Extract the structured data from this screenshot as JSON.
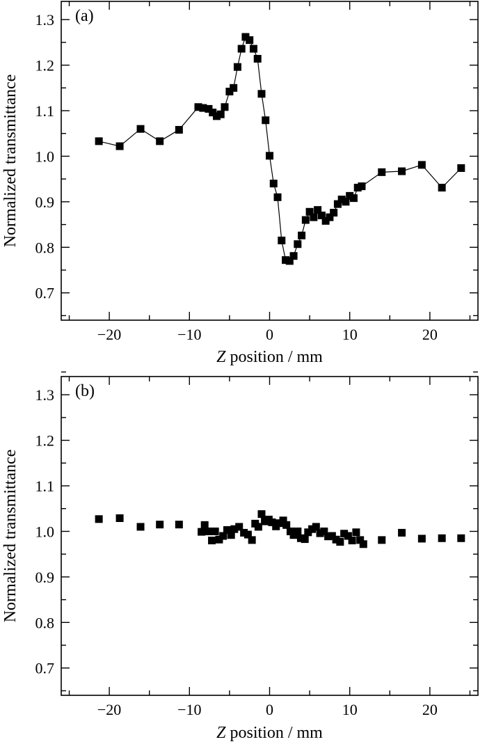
{
  "chart_data": [
    {
      "type": "line",
      "panel_label": "(a)",
      "xlabel_italic": "Z",
      "xlabel_rest": " position / mm",
      "ylabel": "Normalized transmittance",
      "xlim": [
        -26,
        26
      ],
      "ylim": [
        0.64,
        1.34
      ],
      "x_ticks": [
        -20,
        -10,
        0,
        10,
        20
      ],
      "x_tick_labels": [
        "−20",
        "−10",
        "0",
        "10",
        "20"
      ],
      "y_ticks": [
        0.7,
        0.8,
        0.9,
        1.0,
        1.1,
        1.2,
        1.3
      ],
      "y_tick_labels": [
        "0.7",
        "0.8",
        "0.9",
        "1.0",
        "1.1",
        "1.2",
        "1.3"
      ],
      "show_line": true,
      "marker": "square",
      "series": [
        {
          "x": [
            -21.3,
            -18.7,
            -16.1,
            -13.7,
            -11.3,
            -8.9,
            -8.3,
            -7.6,
            -7.1,
            -6.6,
            -6.1,
            -5.6,
            -5.0,
            -4.5,
            -4.0,
            -3.5,
            -3.0,
            -2.5,
            -2.0,
            -1.5,
            -1.0,
            -0.5,
            0.0,
            0.5,
            1.0,
            1.5,
            2.0,
            2.5,
            3.0,
            3.5,
            4.0,
            4.5,
            5.0,
            5.5,
            6.0,
            6.5,
            7.0,
            7.5,
            8.0,
            8.5,
            9.0,
            9.5,
            10.0,
            10.5,
            11.0,
            11.5,
            14.0,
            16.5,
            19.0,
            21.5,
            23.9
          ],
          "y": [
            1.033,
            1.022,
            1.06,
            1.033,
            1.058,
            1.108,
            1.106,
            1.104,
            1.096,
            1.088,
            1.092,
            1.108,
            1.142,
            1.15,
            1.196,
            1.236,
            1.262,
            1.255,
            1.236,
            1.214,
            1.137,
            1.079,
            1.001,
            0.94,
            0.91,
            0.815,
            0.772,
            0.77,
            0.781,
            0.807,
            0.826,
            0.86,
            0.878,
            0.866,
            0.882,
            0.87,
            0.858,
            0.866,
            0.876,
            0.895,
            0.905,
            0.9,
            0.913,
            0.908,
            0.931,
            0.934,
            0.965,
            0.967,
            0.981,
            0.931,
            0.974
          ]
        }
      ]
    },
    {
      "type": "scatter",
      "panel_label": "(b)",
      "xlabel_italic": "Z",
      "xlabel_rest": " position / mm",
      "ylabel": "Normalized transmittance",
      "xlim": [
        -26,
        26
      ],
      "ylim": [
        0.64,
        1.34
      ],
      "x_ticks": [
        -20,
        -10,
        0,
        10,
        20
      ],
      "x_tick_labels": [
        "−20",
        "−10",
        "0",
        "10",
        "20"
      ],
      "y_ticks": [
        0.7,
        0.8,
        0.9,
        1.0,
        1.1,
        1.2,
        1.3
      ],
      "y_tick_labels": [
        "0.7",
        "0.8",
        "0.9",
        "1.0",
        "1.1",
        "1.2",
        "1.3"
      ],
      "show_line": false,
      "marker": "square",
      "series": [
        {
          "x": [
            -21.3,
            -18.7,
            -16.1,
            -13.7,
            -11.3,
            -8.5,
            -8.1,
            -7.6,
            -7.2,
            -6.8,
            -6.3,
            -5.8,
            -5.3,
            -4.8,
            -4.4,
            -3.8,
            -3.2,
            -2.7,
            -2.2,
            -1.8,
            -1.4,
            -1.0,
            -0.6,
            -0.1,
            0.3,
            0.8,
            1.2,
            1.7,
            2.1,
            2.6,
            3.0,
            3.5,
            3.9,
            4.4,
            4.8,
            5.3,
            5.8,
            6.3,
            6.8,
            7.3,
            7.8,
            8.3,
            8.8,
            9.3,
            9.8,
            10.3,
            10.8,
            11.3,
            11.7,
            14.0,
            16.5,
            19.0,
            21.5,
            23.9
          ],
          "y": [
            1.027,
            1.029,
            1.01,
            1.015,
            1.015,
            0.999,
            1.014,
            1.0,
            0.98,
            1.0,
            0.982,
            0.99,
            1.003,
            0.992,
            1.005,
            1.01,
            0.997,
            0.993,
            0.981,
            1.017,
            1.01,
            1.038,
            1.022,
            1.026,
            1.02,
            1.011,
            1.018,
            1.024,
            1.014,
            1.0,
            0.992,
            1.0,
            0.985,
            0.983,
            0.998,
            1.005,
            1.01,
            0.996,
            1.0,
            0.989,
            0.99,
            0.982,
            0.977,
            0.995,
            0.99,
            0.98,
            0.998,
            0.981,
            0.972,
            0.981,
            0.997,
            0.984,
            0.985,
            0.985
          ]
        }
      ]
    }
  ]
}
